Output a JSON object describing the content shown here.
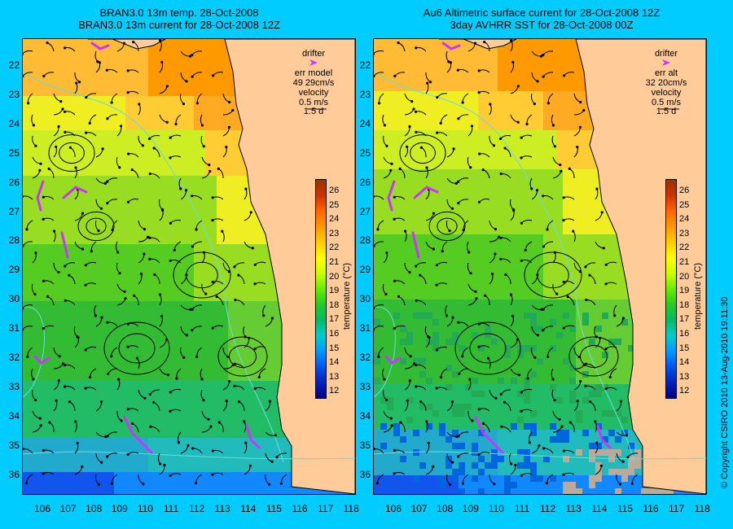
{
  "left_panel": {
    "title_line1": "BRAN3.0 13m temp. 28-Oct-2008",
    "title_line2": "BRAN3.0 13m current for 28-Oct-2008 12Z",
    "legend": {
      "drifter": "drifter",
      "err_label": "err model",
      "err_value": "49 29cm/s",
      "velocity": "velocity",
      "velocity_scale": "0.5 m/s",
      "velocity_time": "1.5 d"
    }
  },
  "right_panel": {
    "title_line1": "Au6 Altimetric surface current for 28-Oct-2008 12Z",
    "title_line2": "3day AVHRR SST for 28-Oct-2008 00Z",
    "legend": {
      "drifter": "drifter",
      "err_label": "err alt",
      "err_value": "32 20cm/s",
      "velocity": "velocity",
      "velocity_scale": "0.5 m/s",
      "velocity_time": "1.5 d"
    }
  },
  "lat_labels": [
    "22",
    "23",
    "24",
    "25",
    "26",
    "27",
    "28",
    "29",
    "30",
    "31",
    "32",
    "33",
    "34",
    "35",
    "36"
  ],
  "lon_labels": [
    "106",
    "107",
    "108",
    "109",
    "110",
    "111",
    "112",
    "113",
    "114",
    "115",
    "116",
    "117",
    "118"
  ],
  "colorbar": {
    "label": "temperature (°C)",
    "ticks": [
      "26",
      "25",
      "24",
      "23",
      "22",
      "21",
      "20",
      "19",
      "18",
      "17",
      "16",
      "15",
      "14",
      "13",
      "12"
    ],
    "min": 11.5,
    "max": 26.5
  },
  "colors": {
    "background": "#00ccff",
    "land": "#ffcc99",
    "drifter": "#cc33ff",
    "contour": "#66dddd"
  },
  "copyright": "© Copyright CSIRO 2010   13-Aug-2010 19:11:30"
}
